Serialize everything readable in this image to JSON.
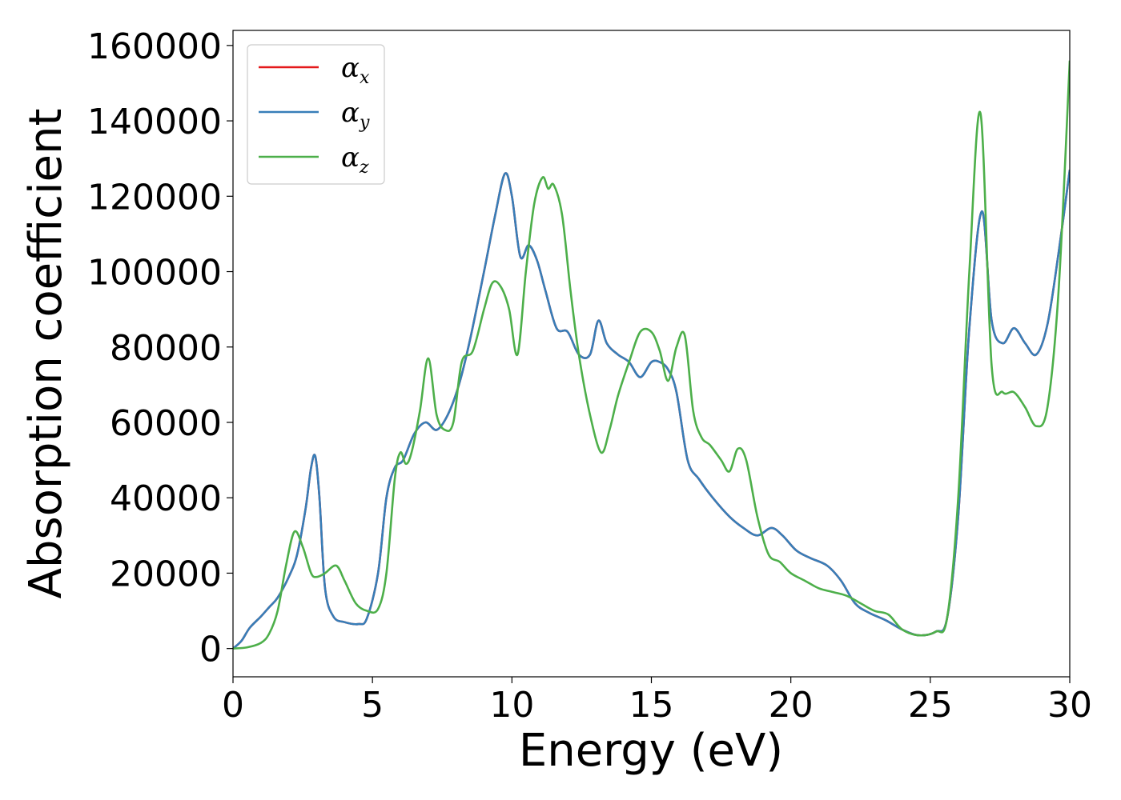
{
  "chart_data": {
    "type": "line",
    "xlabel": "Energy (eV)",
    "ylabel": "Absorption coefficient",
    "xlim": [
      0,
      30
    ],
    "ylim": [
      -7500,
      164000
    ],
    "xticks": [
      0,
      5,
      10,
      15,
      20,
      25,
      30
    ],
    "yticks": [
      0,
      20000,
      40000,
      60000,
      80000,
      100000,
      120000,
      140000,
      160000
    ],
    "legend_position": "upper-left",
    "grid": false,
    "series": [
      {
        "name": "α_x",
        "name_base": "α",
        "name_sub": "x",
        "color": "#e41a1c",
        "x": [
          0,
          0.3,
          0.6,
          1.0,
          1.3,
          1.6,
          2.0,
          2.3,
          2.6,
          2.8,
          2.95,
          3.1,
          3.3,
          3.6,
          4.0,
          4.5,
          4.8,
          5.2,
          5.5,
          5.8,
          6.1,
          6.5,
          6.9,
          7.3,
          7.7,
          8.1,
          8.5,
          9.0,
          9.4,
          9.75,
          10.0,
          10.3,
          10.6,
          10.9,
          11.2,
          11.6,
          12.0,
          12.4,
          12.8,
          13.1,
          13.4,
          13.8,
          14.2,
          14.6,
          15.0,
          15.3,
          15.6,
          15.9,
          16.3,
          16.7,
          17.2,
          17.8,
          18.3,
          18.8,
          19.3,
          19.7,
          20.2,
          20.7,
          21.3,
          21.8,
          22.3,
          22.8,
          23.4,
          24.0,
          24.6,
          25.2,
          25.6,
          26.0,
          26.4,
          26.85,
          27.2,
          27.6,
          28.0,
          28.4,
          28.8,
          29.2,
          29.6,
          30.0
        ],
        "values": [
          0,
          2000,
          5500,
          8500,
          11000,
          13500,
          19000,
          25000,
          37000,
          48000,
          51000,
          40000,
          16000,
          8500,
          7000,
          6500,
          8000,
          20000,
          40000,
          48000,
          50000,
          57000,
          60000,
          58000,
          62000,
          70000,
          82000,
          100000,
          115000,
          126000,
          120000,
          104000,
          107000,
          103000,
          95000,
          85000,
          84000,
          78000,
          78000,
          87000,
          81000,
          78000,
          76000,
          72000,
          76000,
          76000,
          74000,
          68000,
          50000,
          45000,
          40000,
          35000,
          32000,
          30000,
          32000,
          30000,
          26000,
          24000,
          22000,
          18000,
          12000,
          9500,
          7500,
          5000,
          3500,
          4500,
          8000,
          35000,
          85000,
          116000,
          87000,
          81000,
          85000,
          81000,
          78000,
          86000,
          105000,
          127000
        ]
      },
      {
        "name": "α_y",
        "name_base": "α",
        "name_sub": "y",
        "color": "#377eb8",
        "x": [
          0,
          0.3,
          0.6,
          1.0,
          1.3,
          1.6,
          2.0,
          2.3,
          2.6,
          2.8,
          2.95,
          3.1,
          3.3,
          3.6,
          4.0,
          4.5,
          4.8,
          5.2,
          5.5,
          5.8,
          6.1,
          6.5,
          6.9,
          7.3,
          7.7,
          8.1,
          8.5,
          9.0,
          9.4,
          9.75,
          10.0,
          10.3,
          10.6,
          10.9,
          11.2,
          11.6,
          12.0,
          12.4,
          12.8,
          13.1,
          13.4,
          13.8,
          14.2,
          14.6,
          15.0,
          15.3,
          15.6,
          15.9,
          16.3,
          16.7,
          17.2,
          17.8,
          18.3,
          18.8,
          19.3,
          19.7,
          20.2,
          20.7,
          21.3,
          21.8,
          22.3,
          22.8,
          23.4,
          24.0,
          24.6,
          25.2,
          25.6,
          26.0,
          26.4,
          26.85,
          27.2,
          27.6,
          28.0,
          28.4,
          28.8,
          29.2,
          29.6,
          30.0
        ],
        "values": [
          0,
          2000,
          5500,
          8500,
          11000,
          13500,
          19000,
          25000,
          37000,
          48000,
          51000,
          40000,
          16000,
          8500,
          7000,
          6500,
          8000,
          20000,
          40000,
          48000,
          50000,
          57000,
          60000,
          58000,
          62000,
          70000,
          82000,
          100000,
          115000,
          126000,
          120000,
          104000,
          107000,
          103000,
          95000,
          85000,
          84000,
          78000,
          78000,
          87000,
          81000,
          78000,
          76000,
          72000,
          76000,
          76000,
          74000,
          68000,
          50000,
          45000,
          40000,
          35000,
          32000,
          30000,
          32000,
          30000,
          26000,
          24000,
          22000,
          18000,
          12000,
          9500,
          7500,
          5000,
          3500,
          4500,
          8000,
          35000,
          85000,
          116000,
          87000,
          81000,
          85000,
          81000,
          78000,
          86000,
          105000,
          127000
        ]
      },
      {
        "name": "α_z",
        "name_base": "α",
        "name_sub": "z",
        "color": "#4daf4a",
        "x": [
          0,
          0.5,
          1.0,
          1.3,
          1.6,
          1.9,
          2.2,
          2.5,
          2.8,
          3.0,
          3.3,
          3.7,
          4.0,
          4.4,
          4.8,
          5.2,
          5.5,
          5.8,
          6.0,
          6.2,
          6.4,
          6.7,
          7.0,
          7.3,
          7.6,
          7.9,
          8.2,
          8.6,
          9.0,
          9.3,
          9.6,
          9.9,
          10.2,
          10.5,
          10.8,
          11.1,
          11.3,
          11.5,
          11.8,
          12.1,
          12.4,
          12.8,
          13.2,
          13.5,
          13.8,
          14.2,
          14.6,
          15.0,
          15.3,
          15.6,
          15.9,
          16.2,
          16.5,
          16.8,
          17.1,
          17.5,
          17.8,
          18.1,
          18.4,
          18.8,
          19.2,
          19.6,
          20.0,
          20.5,
          21.0,
          21.5,
          22.0,
          22.5,
          23.0,
          23.5,
          24.0,
          24.6,
          25.2,
          25.6,
          26.0,
          26.4,
          26.8,
          27.2,
          27.6,
          28.0,
          28.4,
          28.8,
          29.2,
          29.6,
          30.0
        ],
        "values": [
          0,
          300,
          1500,
          4000,
          10000,
          22000,
          31000,
          27000,
          20000,
          19000,
          20000,
          22000,
          18000,
          12000,
          10000,
          10500,
          20000,
          45000,
          52000,
          49000,
          52000,
          63000,
          77000,
          62000,
          58000,
          60000,
          76000,
          79000,
          90000,
          97000,
          96000,
          90000,
          78000,
          100000,
          118000,
          125000,
          122000,
          123000,
          115000,
          95000,
          78000,
          62000,
          52000,
          58000,
          67000,
          76000,
          84000,
          84000,
          79000,
          71000,
          80000,
          83000,
          63000,
          56000,
          54000,
          50000,
          47000,
          53000,
          50000,
          35000,
          25000,
          23000,
          20000,
          18000,
          16000,
          15000,
          14000,
          12000,
          10000,
          9000,
          5000,
          3500,
          4500,
          8000,
          40000,
          100000,
          142000,
          75000,
          68000,
          68000,
          64000,
          59000,
          64000,
          95000,
          156000
        ]
      }
    ]
  }
}
